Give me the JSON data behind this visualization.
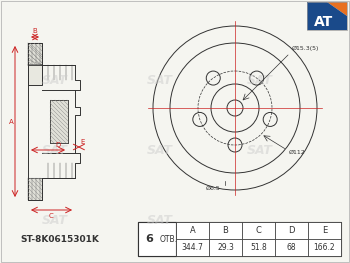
{
  "bg_color": "#f5f5f0",
  "line_color": "#333333",
  "red_color": "#cc2222",
  "hatch_color": "#888888",
  "sat_logo_color": "#cccccc",
  "part_number": "ST-8K0615301K",
  "holes": "6",
  "otv_label": "ОТВ.",
  "table_headers": [
    "A",
    "B",
    "C",
    "D",
    "E"
  ],
  "table_values": [
    "344.7",
    "29.3",
    "51.8",
    "68",
    "166.2"
  ],
  "dim_labels": {
    "bolt_circle": "Ø112",
    "center_hole": "Ø15.3(5)",
    "small_hole": "Ø6.5"
  },
  "orange_color": "#e87020",
  "blue_color": "#1a4a8a"
}
